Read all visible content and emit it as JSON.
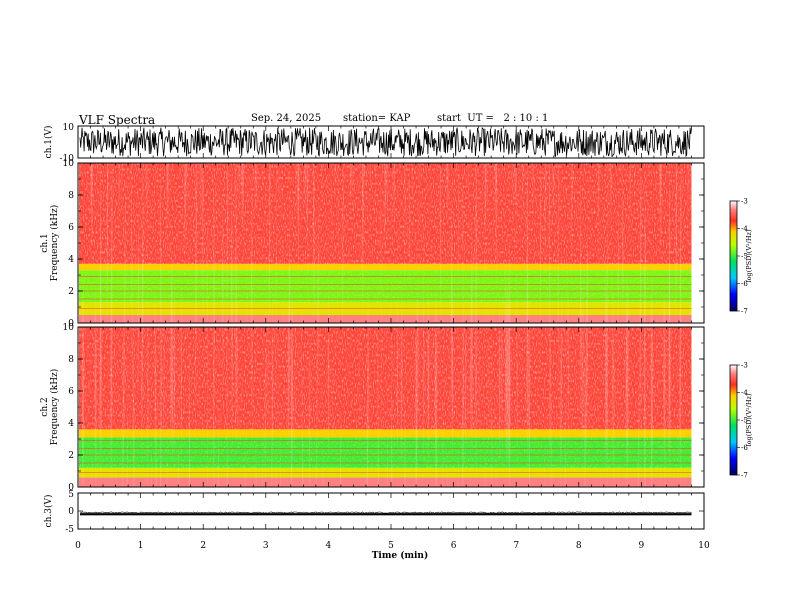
{
  "header": {
    "title": "VLF Spectra",
    "date": "Sep. 24, 2025",
    "station": "station= KAP",
    "start": "start  UT =   2 : 10 : 1"
  },
  "chart_data": [
    {
      "type": "line",
      "name": "ch1-waveform",
      "ylabel": "ch.1(V)",
      "ylim": [
        -10,
        10
      ],
      "yticks": [
        "10",
        "-10"
      ],
      "xlim": [
        0,
        10
      ],
      "approx_amplitude": [
        -10,
        10
      ],
      "data_extent_min": 9.8
    },
    {
      "type": "heatmap",
      "name": "ch1-spectrogram",
      "ylabel_top": "ch.1",
      "ylabel": "Frequency (kHz)",
      "ylim": [
        0,
        10
      ],
      "yticks": [
        "0",
        "2",
        "4",
        "6",
        "8",
        "10"
      ],
      "xlim": [
        0,
        10
      ],
      "bands": [
        {
          "from_khz": 0.0,
          "to_khz": 0.5,
          "level": -3.3
        },
        {
          "from_khz": 0.5,
          "to_khz": 1.3,
          "level": -4.3
        },
        {
          "from_khz": 1.3,
          "to_khz": 3.3,
          "level": -4.8
        },
        {
          "from_khz": 3.3,
          "to_khz": 3.7,
          "level": -4.1
        },
        {
          "from_khz": 3.7,
          "to_khz": 10.0,
          "level": -3.6
        }
      ],
      "colorbar": {
        "label": "log(PSD)(V²/Hz)",
        "ticks": [
          "-3",
          "-4",
          "-5",
          "-6",
          "-7"
        ],
        "range": [
          -7,
          -3
        ]
      }
    },
    {
      "type": "heatmap",
      "name": "ch2-spectrogram",
      "ylabel_top": "ch.2",
      "ylabel": "Frequency (kHz)",
      "ylim": [
        0,
        10
      ],
      "yticks": [
        "0",
        "2",
        "4",
        "6",
        "8",
        "10"
      ],
      "xlim": [
        0,
        10
      ],
      "bands": [
        {
          "from_khz": 0.0,
          "to_khz": 0.6,
          "level": -3.3
        },
        {
          "from_khz": 0.6,
          "to_khz": 1.2,
          "level": -4.3
        },
        {
          "from_khz": 1.2,
          "to_khz": 3.1,
          "level": -5.0
        },
        {
          "from_khz": 3.1,
          "to_khz": 3.6,
          "level": -4.1
        },
        {
          "from_khz": 3.6,
          "to_khz": 10.0,
          "level": -3.6
        }
      ],
      "colorbar": {
        "label": "log(PSD)(V²/Hz)",
        "ticks": [
          "-3",
          "-4",
          "-5",
          "-6",
          "-7"
        ],
        "range": [
          -7,
          -3
        ]
      }
    },
    {
      "type": "line",
      "name": "ch3-waveform",
      "ylabel": "ch.3(V)",
      "ylim": [
        -5,
        5
      ],
      "yticks": [
        "5",
        "0",
        "-5"
      ],
      "xlim": [
        0,
        10
      ],
      "approx_band": [
        -1.2,
        -0.6
      ],
      "data_extent_min": 9.8
    }
  ],
  "xaxis": {
    "label": "Time (min)",
    "ticks": [
      "0",
      "1",
      "2",
      "3",
      "4",
      "5",
      "6",
      "7",
      "8",
      "9",
      "10"
    ]
  }
}
